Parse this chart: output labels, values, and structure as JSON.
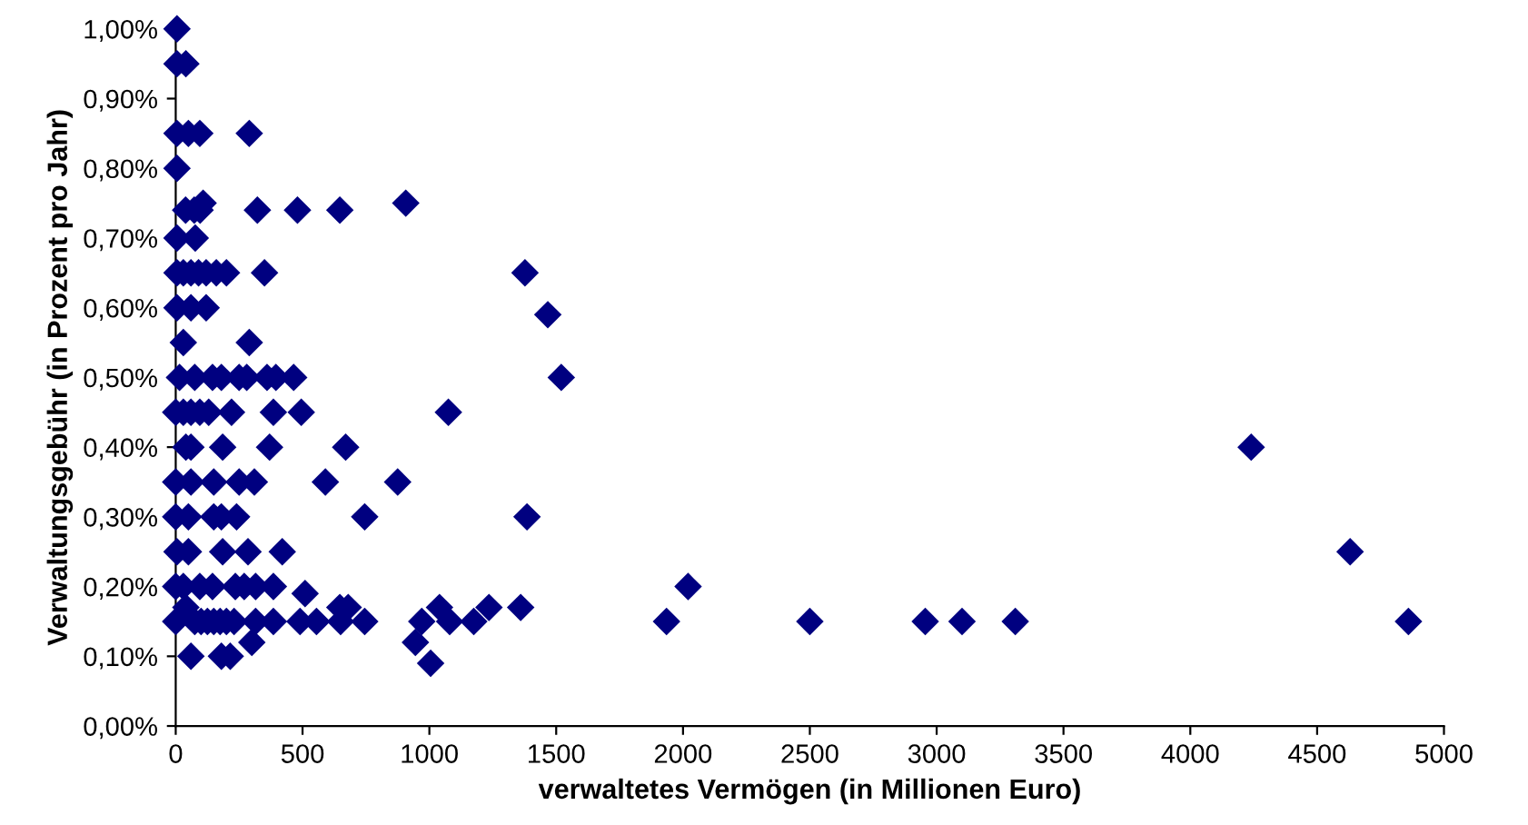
{
  "chart_data": {
    "type": "scatter",
    "xlabel": "verwaltetes Vermögen (in Millionen Euro)",
    "ylabel": "Verwaltungsgebühr (in Prozent pro Jahr)",
    "xlim": [
      0,
      5000
    ],
    "xticks": [
      0,
      500,
      1000,
      1500,
      2000,
      2500,
      3000,
      3500,
      4000,
      4500,
      5000
    ],
    "ylim": [
      0,
      1.0
    ],
    "yticks": [
      {
        "value": 0,
        "label": "0,00%"
      },
      {
        "value": 0.1,
        "label": "0,10%"
      },
      {
        "value": 0.2,
        "label": "0,20%"
      },
      {
        "value": 0.3,
        "label": "0,30%"
      },
      {
        "value": 0.4,
        "label": "0,40%"
      },
      {
        "value": 0.5,
        "label": "0,50%"
      },
      {
        "value": 0.6,
        "label": "0,60%"
      },
      {
        "value": 0.7,
        "label": "0,70%"
      },
      {
        "value": 0.8,
        "label": "0,80%"
      },
      {
        "value": 0.9,
        "label": "0,90%"
      },
      {
        "value": 1.0,
        "label": "1,00%"
      }
    ],
    "grid": false,
    "marker": "diamond",
    "series": [
      {
        "color": "#000080",
        "x": [
          5,
          5,
          40,
          5,
          50,
          95,
          290,
          5,
          108,
          907,
          39,
          73,
          96,
          322,
          480,
          647,
          5,
          77,
          5,
          30,
          60,
          90,
          120,
          160,
          200,
          350,
          1377,
          5,
          60,
          120,
          1467,
          30,
          290,
          15,
          75,
          145,
          180,
          250,
          280,
          360,
          395,
          465,
          1520,
          0,
          30,
          60,
          95,
          130,
          220,
          385,
          495,
          1075,
          40,
          60,
          185,
          370,
          670,
          0,
          60,
          150,
          250,
          310,
          590,
          875,
          0,
          50,
          150,
          180,
          240,
          745,
          1385,
          5,
          50,
          185,
          285,
          420,
          0,
          30,
          95,
          145,
          235,
          270,
          315,
          385,
          510,
          40,
          647,
          680,
          1040,
          1235,
          1360,
          0,
          75,
          100,
          125,
          150,
          175,
          200,
          230,
          315,
          385,
          490,
          555,
          650,
          745,
          970,
          1080,
          1175,
          300,
          945,
          60,
          180,
          215,
          1005,
          1935,
          2020,
          2500,
          2955,
          3100,
          3310,
          4240,
          4630,
          4860
        ],
        "values": [
          1.0,
          0.95,
          0.95,
          0.85,
          0.85,
          0.85,
          0.85,
          0.8,
          0.75,
          0.75,
          0.74,
          0.74,
          0.74,
          0.74,
          0.74,
          0.74,
          0.7,
          0.7,
          0.65,
          0.65,
          0.65,
          0.65,
          0.65,
          0.65,
          0.65,
          0.65,
          0.65,
          0.6,
          0.6,
          0.6,
          0.59,
          0.55,
          0.55,
          0.5,
          0.5,
          0.5,
          0.5,
          0.5,
          0.5,
          0.5,
          0.5,
          0.5,
          0.5,
          0.45,
          0.45,
          0.45,
          0.45,
          0.45,
          0.45,
          0.45,
          0.45,
          0.45,
          0.4,
          0.4,
          0.4,
          0.4,
          0.4,
          0.35,
          0.35,
          0.35,
          0.35,
          0.35,
          0.35,
          0.35,
          0.3,
          0.3,
          0.3,
          0.3,
          0.3,
          0.3,
          0.3,
          0.25,
          0.25,
          0.25,
          0.25,
          0.25,
          0.2,
          0.2,
          0.2,
          0.2,
          0.2,
          0.2,
          0.2,
          0.2,
          0.19,
          0.17,
          0.17,
          0.17,
          0.17,
          0.17,
          0.17,
          0.15,
          0.15,
          0.15,
          0.15,
          0.15,
          0.15,
          0.15,
          0.15,
          0.15,
          0.15,
          0.15,
          0.15,
          0.15,
          0.15,
          0.15,
          0.15,
          0.15,
          0.12,
          0.12,
          0.1,
          0.1,
          0.1,
          0.09,
          0.15,
          0.2,
          0.15,
          0.15,
          0.15,
          0.15,
          0.4,
          0.25,
          0.15
        ]
      }
    ]
  }
}
